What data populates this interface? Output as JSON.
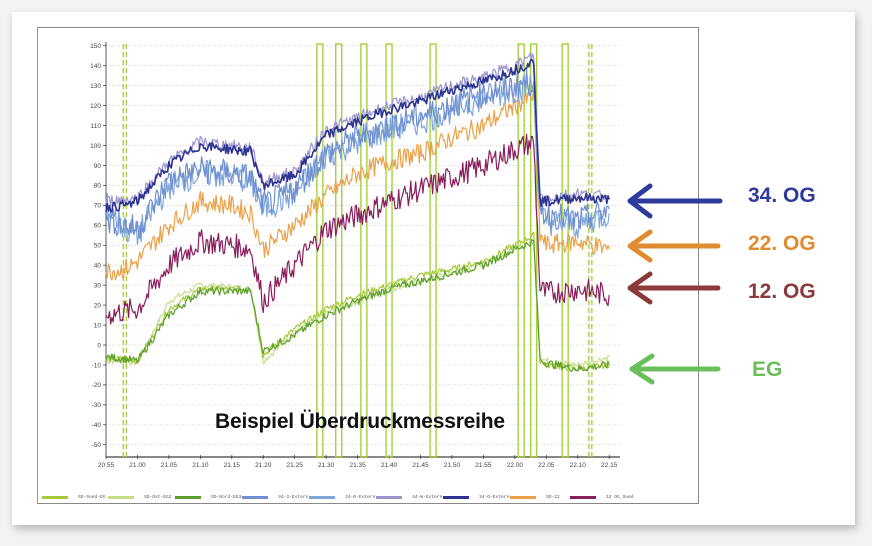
{
  "figure": {
    "title": "Beispiel Überdruckmessreihe",
    "floor_labels": [
      {
        "label": "34. OG",
        "color": "#2E3A9E"
      },
      {
        "label": "22. OG",
        "color": "#E08B2E"
      },
      {
        "label": "12. OG",
        "color": "#8B3A3A"
      },
      {
        "label": "EG",
        "color": "#6BBF59"
      }
    ]
  },
  "legend": [
    {
      "label": "SD-Sued-EG",
      "color": "#A6C93A"
    },
    {
      "label": "SD-Ost-EG2",
      "color": "#C5DE8E"
    },
    {
      "label": "SD-Nord-EG3",
      "color": "#5E9E2F"
    },
    {
      "label": "34-3-Extern",
      "color": "#6F8FD0"
    },
    {
      "label": "34-N-Extern",
      "color": "#7FA6DA"
    },
    {
      "label": "34-W-Extern",
      "color": "#9C95CE"
    },
    {
      "label": "34-O-Extern",
      "color": "#2D3490"
    },
    {
      "label": "SD-22",
      "color": "#EBA14A"
    },
    {
      "label": "12 OG_Sued",
      "color": "#8A1E5C"
    }
  ],
  "chart_data": {
    "type": "line",
    "title": "Beispiel Überdruckmessreihe",
    "xlabel": "",
    "ylabel": "",
    "ylim": [
      -55,
      150
    ],
    "yticks": [
      150,
      140,
      130,
      120,
      110,
      100,
      90,
      80,
      70,
      60,
      50,
      40,
      30,
      20,
      10,
      0,
      -10,
      -20,
      -30,
      -40,
      -50
    ],
    "xticks": [
      "20:55",
      "21:00",
      "21:05",
      "21:10",
      "21:15",
      "21:20",
      "21:25",
      "21:30",
      "21:35",
      "21:40",
      "21:45",
      "21:50",
      "21:55",
      "22:00",
      "22:05",
      "22:10",
      "22:15"
    ],
    "grid": true,
    "legend_position": "bottom",
    "x": [
      "20:55",
      "20:58",
      "21:00",
      "21:05",
      "21:10",
      "21:15",
      "21:18",
      "21:20",
      "21:25",
      "21:30",
      "21:35",
      "21:40",
      "21:45",
      "21:50",
      "21:55",
      "22:00",
      "22:03",
      "22:04",
      "22:05",
      "22:10",
      "22:15"
    ],
    "series": [
      {
        "name": "34-O-Extern",
        "floor": "34. OG",
        "values": [
          69,
          70,
          72,
          90,
          100,
          98,
          97,
          80,
          85,
          105,
          112,
          118,
          122,
          128,
          132,
          138,
          142,
          72,
          72,
          74,
          73
        ]
      },
      {
        "name": "34-W-Extern",
        "floor": "34. OG",
        "values": [
          72,
          73,
          74,
          92,
          102,
          100,
          99,
          82,
          87,
          108,
          114,
          120,
          124,
          130,
          134,
          140,
          145,
          75,
          74,
          76,
          74
        ]
      },
      {
        "name": "34-3-Extern",
        "floor": "34. OG",
        "values": [
          63,
          60,
          58,
          82,
          88,
          86,
          84,
          70,
          78,
          96,
          104,
          110,
          115,
          120,
          126,
          130,
          132,
          68,
          66,
          62,
          68
        ]
      },
      {
        "name": "34-N-Extern",
        "floor": "34. OG",
        "values": [
          70,
          58,
          55,
          80,
          86,
          85,
          82,
          68,
          76,
          95,
          102,
          108,
          112,
          118,
          124,
          128,
          130,
          65,
          62,
          60,
          66
        ]
      },
      {
        "name": "SD-22",
        "floor": "22. OG",
        "values": [
          37,
          38,
          42,
          60,
          72,
          70,
          66,
          48,
          60,
          75,
          86,
          92,
          96,
          104,
          110,
          120,
          125,
          55,
          50,
          52,
          48
        ]
      },
      {
        "name": "12 OG_Sued",
        "floor": "12. OG",
        "values": [
          15,
          17,
          18,
          40,
          52,
          50,
          48,
          22,
          40,
          58,
          65,
          72,
          78,
          84,
          90,
          98,
          102,
          28,
          26,
          28,
          25
        ]
      },
      {
        "name": "SD-Sued-EG",
        "floor": "EG",
        "values": [
          -7,
          -7,
          -8,
          18,
          28,
          28,
          28,
          -5,
          8,
          18,
          25,
          30,
          35,
          38,
          42,
          50,
          55,
          -8,
          -10,
          -12,
          -10
        ]
      },
      {
        "name": "SD-Ost-EG2",
        "floor": "EG",
        "values": [
          -8,
          -8,
          -9,
          22,
          30,
          29,
          28,
          -8,
          6,
          16,
          22,
          28,
          32,
          36,
          40,
          48,
          52,
          -6,
          -8,
          -10,
          -6
        ]
      },
      {
        "name": "SD-Nord-EG3",
        "floor": "EG",
        "values": [
          -6,
          -7,
          -8,
          15,
          27,
          27,
          27,
          -3,
          5,
          15,
          22,
          28,
          32,
          36,
          40,
          48,
          52,
          -7,
          -9,
          -12,
          -10
        ]
      }
    ],
    "event_markers": {
      "color": "#A6D23A",
      "dashed_lines_at": [
        "20:58",
        "22:12"
      ],
      "pulses_at": [
        "21:29",
        "21:32",
        "21:36",
        "21:40",
        "21:47",
        "22:01",
        "22:03",
        "22:08"
      ]
    },
    "annotations": [
      "34. OG",
      "22. OG",
      "12. OG",
      "EG"
    ]
  }
}
